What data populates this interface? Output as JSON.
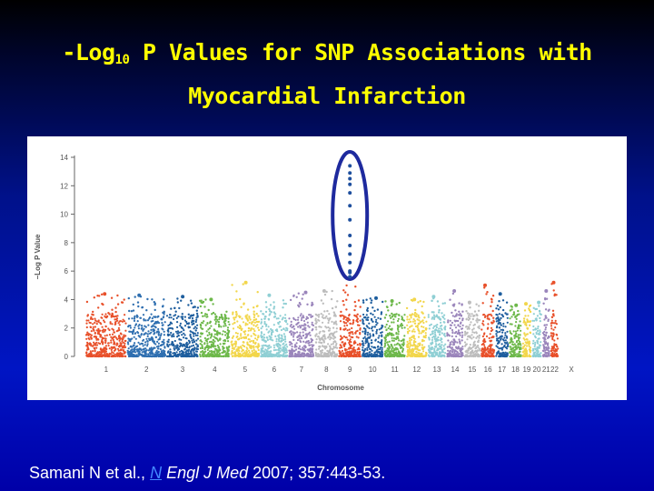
{
  "slide": {
    "title_prefix": "-Log",
    "title_subscript": "10",
    "title_rest": " P Values for SNP Associations with",
    "title_line2": "Myocardial Infarction"
  },
  "citation": {
    "authors": "Samani N et al., ",
    "journal_initial": "N",
    "journal_rest": " Engl J Med",
    "details": " 2007; 357:443-53."
  },
  "chart_data": {
    "type": "scatter",
    "title": "",
    "xlabel": "Chromosome",
    "ylabel": "−Log P Value",
    "ylim": [
      0,
      14
    ],
    "yticks": [
      0,
      2,
      4,
      6,
      8,
      10,
      12,
      14
    ],
    "categories": [
      "1",
      "2",
      "3",
      "4",
      "5",
      "6",
      "7",
      "8",
      "9",
      "10",
      "11",
      "12",
      "13",
      "14",
      "15",
      "16",
      "17",
      "18",
      "19",
      "20",
      "21",
      "22",
      "X"
    ],
    "chromosome_relative_lengths": [
      8.2,
      7.8,
      6.5,
      6.2,
      5.9,
      5.6,
      5.2,
      4.7,
      4.6,
      4.4,
      4.4,
      4.3,
      3.7,
      3.5,
      3.3,
      2.9,
      2.7,
      2.6,
      1.9,
      2.1,
      1.6,
      1.7,
      5.0
    ],
    "colors": [
      "#e8502a",
      "#2f6fb0",
      "#1e5e9e",
      "#6db84a",
      "#f2d64b",
      "#8fcfd4",
      "#9a85bb",
      "#bdbdbd",
      "#e8502a",
      "#1e5e9e",
      "#6db84a",
      "#f2d64b",
      "#8fcfd4",
      "#9a85bb",
      "#bdbdbd",
      "#e8502a",
      "#1e5e9e",
      "#6db84a",
      "#f2d64b",
      "#8fcfd4",
      "#9a85bb",
      "#e8502a",
      "#ffffff"
    ],
    "peak_values": [
      4.4,
      4.3,
      4.2,
      4.0,
      5.2,
      4.3,
      4.5,
      4.6,
      13.8,
      4.1,
      3.9,
      4.0,
      4.2,
      4.6,
      3.8,
      5.0,
      4.4,
      3.6,
      3.7,
      3.8,
      4.6,
      5.2,
      0
    ],
    "highlight": {
      "chromosome": "9",
      "values": [
        13.4,
        12.9,
        12.5,
        12.1,
        11.5,
        10.6,
        9.6,
        8.5,
        7.8,
        7.2,
        6.6,
        6.0,
        5.9,
        5.6
      ]
    },
    "grid": false,
    "legend": "none"
  }
}
